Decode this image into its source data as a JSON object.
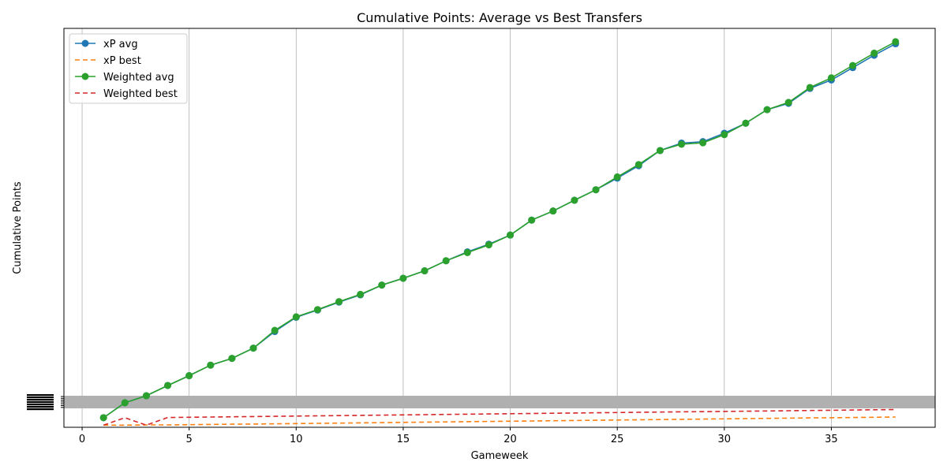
{
  "chart_data": {
    "type": "line",
    "title": "Cumulative Points: Average vs Best Transfers",
    "xlabel": "Gameweek",
    "ylabel": "Cumulative Points",
    "xlim": [
      -0.85,
      39.85
    ],
    "x_ticks": [
      0,
      5,
      10,
      15,
      20,
      25,
      30,
      35
    ],
    "ylim": [
      -8,
      1700
    ],
    "y_ticks_note": "dense overlapping y tick labels rendered as an illegible black block",
    "grid": "x-axis vertical lines",
    "legend_position": "top-left",
    "x": [
      1,
      2,
      3,
      4,
      5,
      6,
      7,
      8,
      9,
      10,
      11,
      12,
      13,
      14,
      15,
      16,
      17,
      18,
      19,
      20,
      21,
      22,
      23,
      24,
      25,
      26,
      27,
      28,
      29,
      30,
      31,
      32,
      33,
      34,
      35,
      36,
      37,
      38
    ],
    "series": [
      {
        "name": "xP avg",
        "color": "#1f77b4",
        "style": "solid-marker",
        "values": [
          33,
          97,
          127,
          171,
          213,
          258,
          287,
          331,
          402,
          463,
          494,
          528,
          559,
          601,
          630,
          662,
          705,
          743,
          776,
          815,
          879,
          918,
          964,
          1009,
          1059,
          1112,
          1177,
          1209,
          1215,
          1251,
          1294,
          1352,
          1379,
          1443,
          1479,
          1532,
          1585,
          1634
        ]
      },
      {
        "name": "xP best",
        "color": "#ff7f0e",
        "style": "dashed",
        "values": [
          1,
          1,
          2,
          2,
          3,
          4,
          5,
          6,
          7,
          8,
          9,
          10,
          11,
          12,
          13,
          14,
          15,
          16,
          17,
          18,
          19,
          20,
          21,
          22,
          23,
          24,
          25,
          26,
          27,
          28,
          29,
          30,
          31,
          32,
          33,
          34,
          35,
          36
        ]
      },
      {
        "name": "Weighted avg",
        "color": "#2ca02c",
        "style": "solid-marker",
        "values": [
          33,
          97,
          127,
          171,
          213,
          258,
          287,
          331,
          407,
          465,
          496,
          530,
          561,
          601,
          630,
          662,
          705,
          740,
          773,
          815,
          879,
          918,
          964,
          1009,
          1064,
          1117,
          1177,
          1204,
          1210,
          1245,
          1294,
          1352,
          1383,
          1447,
          1488,
          1541,
          1594,
          1643
        ]
      },
      {
        "name": "Weighted best",
        "color": "#d62728",
        "style": "dashed",
        "values": [
          1,
          33,
          1,
          34,
          35,
          36,
          37,
          38,
          39,
          40,
          41,
          42,
          43,
          44,
          45,
          46,
          47,
          48,
          49,
          50,
          51,
          52,
          53,
          54,
          55,
          56,
          57,
          58,
          59,
          60,
          61,
          62,
          63,
          64,
          65,
          66,
          67,
          68
        ]
      }
    ]
  }
}
